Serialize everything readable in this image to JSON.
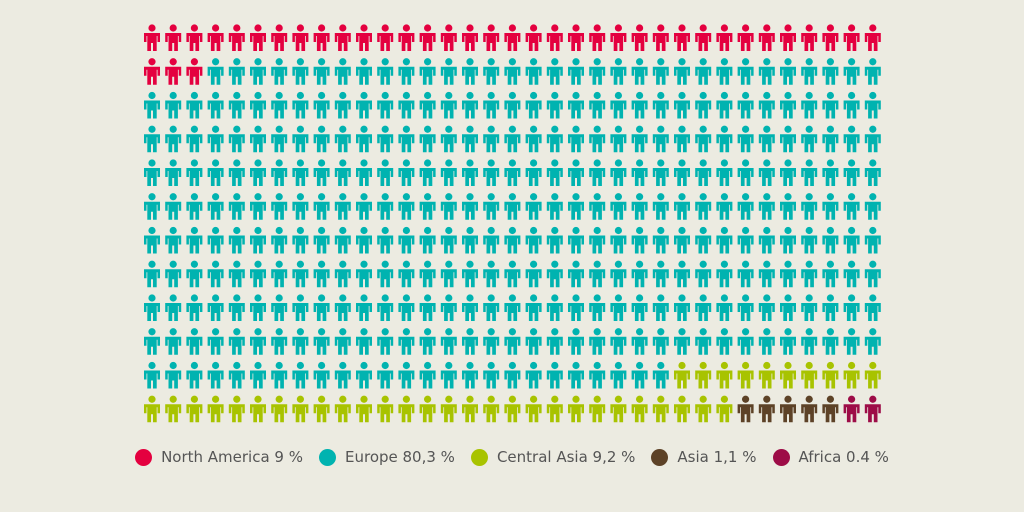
{
  "chart_data": {
    "type": "pictogram",
    "columns": 35,
    "rows": 12,
    "total_icons": 420,
    "series": [
      {
        "name": "North America",
        "label": "North America 9 %",
        "count": 38,
        "color": "#e4003f"
      },
      {
        "name": "Europe",
        "label": "Europe 80,3 %",
        "count": 337,
        "color": "#00b3b0"
      },
      {
        "name": "Central Asia",
        "label": "Central Asia 9,2 %",
        "count": 38,
        "color": "#a8c300"
      },
      {
        "name": "Asia",
        "label": "Asia 1,1 %",
        "count": 5,
        "color": "#5d4227"
      },
      {
        "name": "Africa",
        "label": "Africa 0.4 %",
        "count": 2,
        "color": "#9d0c47"
      }
    ],
    "legend_position": "bottom"
  }
}
